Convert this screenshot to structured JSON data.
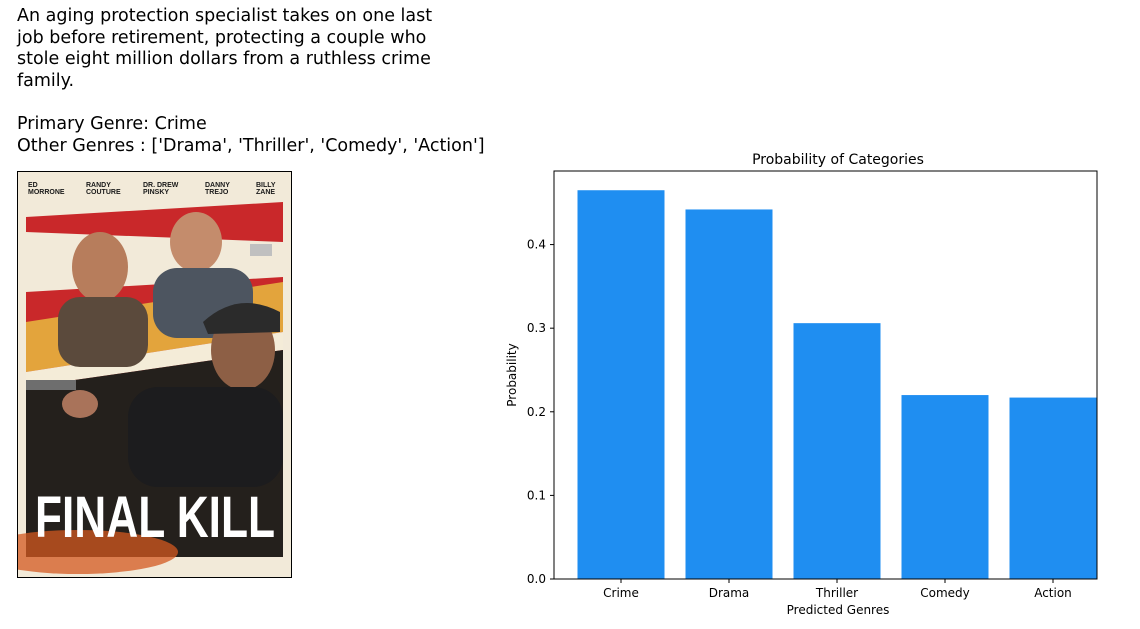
{
  "movie": {
    "description": "An aging protection specialist takes on one last\njob before retirement, protecting a couple who\nstole eight million dollars from a ruthless crime\nfamily.",
    "primary_genre_line": "Primary Genre: Crime",
    "other_genres_line": "Other Genres : ['Drama', 'Thriller', 'Comedy', 'Action']"
  },
  "poster": {
    "title": "FINAL KILL",
    "cast": [
      {
        "first": "ED",
        "last": "MORRONE"
      },
      {
        "first": "RANDY",
        "last": "COUTURE"
      },
      {
        "first": "DR. DREW",
        "last": "PINSKY"
      },
      {
        "first": "DANNY",
        "last": "TREJO"
      },
      {
        "first": "BILLY",
        "last": "ZANE"
      }
    ]
  },
  "chart_data": {
    "type": "bar",
    "title": "Probability of Categories",
    "xlabel": "Predicted Genres",
    "ylabel": "Probability",
    "categories": [
      "Crime",
      "Drama",
      "Thriller",
      "Comedy",
      "Action"
    ],
    "values": [
      0.465,
      0.442,
      0.306,
      0.22,
      0.217
    ],
    "ylim": [
      0,
      0.488
    ],
    "yticks": [
      0.0,
      0.1,
      0.2,
      0.3,
      0.4
    ],
    "ytick_labels": [
      "0.0",
      "0.1",
      "0.2",
      "0.3",
      "0.4"
    ],
    "bar_color": "#1f8ef1",
    "grid": false
  }
}
